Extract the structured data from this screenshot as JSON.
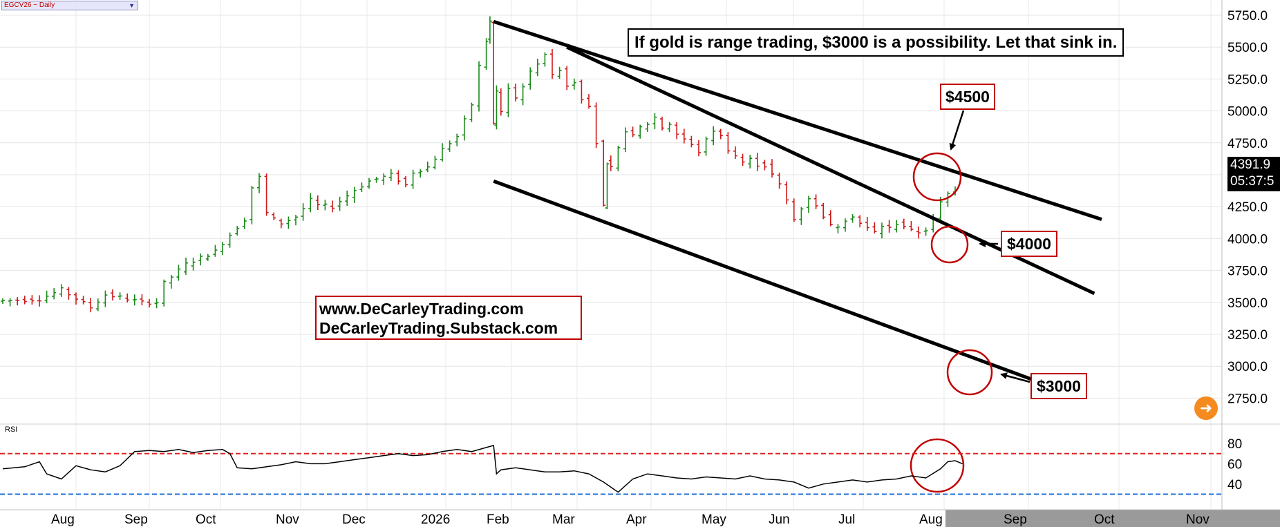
{
  "symbol": "EGCV26 ~ Daily",
  "symbol_dropdown_icon": "chevron-down-icon",
  "headline": "If gold is range trading, $3000 is a possibility. Let that sink in.",
  "websites": [
    "www.DeCarleyTrading.com",
    "DeCarleyTrading.Substack.com"
  ],
  "price_callouts": [
    "$4500",
    "$4000",
    "$3000"
  ],
  "last_price": "4391.9",
  "countdown": "05:37:5",
  "rsi_label": "RSI",
  "nav_icon": "arrow-right-icon",
  "colors": {
    "up": "#1a8a1a",
    "down": "#d01818",
    "callout": "#c00000",
    "overbought": "#e02020",
    "oversold": "#1e6fd9"
  },
  "chart_data": [
    {
      "type": "ohlc",
      "title": "EGCV26 ~ Daily",
      "ylim": [
        2500,
        5850
      ],
      "price_ticks": [
        "5750.0",
        "5500.0",
        "5250.0",
        "5000.0",
        "4750.0",
        "4500.0",
        "4250.0",
        "4000.0",
        "3750.0",
        "3500.0",
        "3250.0",
        "3000.0",
        "2750.0"
      ],
      "month_labels": [
        "Aug",
        "Sep",
        "Oct",
        "Nov",
        "Dec",
        "2026",
        "Feb",
        "Mar",
        "Apr",
        "May",
        "Jun",
        "Jul",
        "Aug",
        "Sep",
        "Oct",
        "Nov"
      ],
      "close_path": [
        [
          0,
          3510
        ],
        [
          6,
          3525
        ],
        [
          9,
          3600
        ],
        [
          11,
          3530
        ],
        [
          13,
          3460
        ],
        [
          15,
          3560
        ],
        [
          17,
          3540
        ],
        [
          20,
          3500
        ],
        [
          22,
          3500
        ],
        [
          23,
          3650
        ],
        [
          26,
          3800
        ],
        [
          28,
          3850
        ],
        [
          30,
          3900
        ],
        [
          32,
          4030
        ],
        [
          34,
          4150
        ],
        [
          35,
          4400
        ],
        [
          36,
          4480
        ],
        [
          37,
          4200
        ],
        [
          38,
          4150
        ],
        [
          39,
          4120
        ],
        [
          41,
          4170
        ],
        [
          43,
          4300
        ],
        [
          44,
          4260
        ],
        [
          46,
          4250
        ],
        [
          49,
          4380
        ],
        [
          51,
          4450
        ],
        [
          54,
          4500
        ],
        [
          56,
          4420
        ],
        [
          57,
          4520
        ],
        [
          59,
          4560
        ],
        [
          61,
          4700
        ],
        [
          63,
          4800
        ],
        [
          65,
          5050
        ],
        [
          66,
          5350
        ],
        [
          66.5,
          5550
        ],
        [
          67,
          5700
        ],
        [
          67.4,
          4900
        ],
        [
          68,
          5150
        ],
        [
          69,
          5000
        ],
        [
          70,
          5180
        ],
        [
          71,
          5100
        ],
        [
          72,
          5200
        ],
        [
          73,
          5300
        ],
        [
          74,
          5380
        ],
        [
          75,
          5450
        ],
        [
          76,
          5270
        ],
        [
          77,
          5330
        ],
        [
          78,
          5200
        ],
        [
          79,
          5230
        ],
        [
          80,
          5100
        ],
        [
          81,
          5050
        ],
        [
          82,
          4750
        ],
        [
          82.5,
          4250
        ],
        [
          83,
          4600
        ],
        [
          84,
          4550
        ],
        [
          85,
          4700
        ],
        [
          86,
          4850
        ],
        [
          87,
          4800
        ],
        [
          88,
          4870
        ],
        [
          89,
          4900
        ],
        [
          90,
          4950
        ],
        [
          91,
          4870
        ],
        [
          92,
          4900
        ],
        [
          93,
          4820
        ],
        [
          94,
          4780
        ],
        [
          95,
          4730
        ],
        [
          96,
          4680
        ],
        [
          97,
          4770
        ],
        [
          98,
          4850
        ],
        [
          99,
          4800
        ],
        [
          100,
          4700
        ],
        [
          101,
          4650
        ],
        [
          102,
          4600
        ],
        [
          103,
          4620
        ],
        [
          104,
          4580
        ],
        [
          105,
          4570
        ],
        [
          106,
          4500
        ],
        [
          107,
          4420
        ],
        [
          108,
          4300
        ],
        [
          109,
          4150
        ],
        [
          110,
          4240
        ],
        [
          111,
          4320
        ],
        [
          112,
          4250
        ],
        [
          113,
          4180
        ],
        [
          114,
          4100
        ],
        [
          115,
          4100
        ],
        [
          116,
          4150
        ],
        [
          117,
          4180
        ],
        [
          118,
          4120
        ],
        [
          119,
          4080
        ],
        [
          120,
          4050
        ],
        [
          121,
          4100
        ],
        [
          122,
          4080
        ],
        [
          123,
          4120
        ],
        [
          124,
          4100
        ],
        [
          125,
          4060
        ],
        [
          126,
          4050
        ],
        [
          127,
          4070
        ],
        [
          128,
          4150
        ],
        [
          129,
          4280
        ],
        [
          130,
          4350
        ],
        [
          131,
          4391.9
        ]
      ],
      "trendlines": [
        {
          "name": "upper channel",
          "from": [
            67,
            5700
          ],
          "to": [
            150,
            4150
          ]
        },
        {
          "name": "middle trendline",
          "from": [
            77,
            5500
          ],
          "to": [
            149,
            3570
          ]
        },
        {
          "name": "lower channel",
          "from": [
            67,
            4450
          ],
          "to": [
            146,
            2780
          ]
        }
      ],
      "circle_levels": [
        4500,
        4000,
        3000
      ],
      "annotation_arrows": [
        "$4500",
        "$4000",
        "$3000"
      ]
    },
    {
      "type": "line",
      "title": "RSI",
      "ylim": [
        20,
        100
      ],
      "yticks": [
        "80",
        "60",
        "40"
      ],
      "overbought": 70,
      "oversold": 30,
      "values": [
        [
          0,
          55
        ],
        [
          3,
          57
        ],
        [
          5,
          62
        ],
        [
          6,
          50
        ],
        [
          8,
          45
        ],
        [
          10,
          58
        ],
        [
          12,
          54
        ],
        [
          14,
          52
        ],
        [
          16,
          58
        ],
        [
          18,
          72
        ],
        [
          20,
          73
        ],
        [
          22,
          72
        ],
        [
          24,
          74
        ],
        [
          26,
          71
        ],
        [
          28,
          73
        ],
        [
          30,
          74
        ],
        [
          31,
          70
        ],
        [
          32,
          56
        ],
        [
          34,
          55
        ],
        [
          36,
          57
        ],
        [
          38,
          59
        ],
        [
          40,
          62
        ],
        [
          42,
          60
        ],
        [
          44,
          60
        ],
        [
          46,
          62
        ],
        [
          48,
          64
        ],
        [
          50,
          66
        ],
        [
          52,
          68
        ],
        [
          54,
          70
        ],
        [
          56,
          68
        ],
        [
          58,
          69
        ],
        [
          60,
          72
        ],
        [
          62,
          74
        ],
        [
          64,
          72
        ],
        [
          66,
          76
        ],
        [
          67,
          78
        ],
        [
          67.4,
          50
        ],
        [
          68,
          54
        ],
        [
          70,
          56
        ],
        [
          72,
          54
        ],
        [
          74,
          52
        ],
        [
          76,
          52
        ],
        [
          78,
          53
        ],
        [
          80,
          50
        ],
        [
          82,
          42
        ],
        [
          84,
          32
        ],
        [
          86,
          45
        ],
        [
          88,
          50
        ],
        [
          90,
          48
        ],
        [
          92,
          46
        ],
        [
          94,
          45
        ],
        [
          96,
          47
        ],
        [
          98,
          46
        ],
        [
          100,
          45
        ],
        [
          102,
          48
        ],
        [
          104,
          45
        ],
        [
          106,
          44
        ],
        [
          108,
          42
        ],
        [
          110,
          36
        ],
        [
          112,
          40
        ],
        [
          114,
          42
        ],
        [
          116,
          44
        ],
        [
          118,
          42
        ],
        [
          120,
          44
        ],
        [
          122,
          45
        ],
        [
          124,
          48
        ],
        [
          126,
          46
        ],
        [
          128,
          55
        ],
        [
          129,
          62
        ],
        [
          130,
          63
        ],
        [
          131,
          60
        ]
      ]
    }
  ]
}
